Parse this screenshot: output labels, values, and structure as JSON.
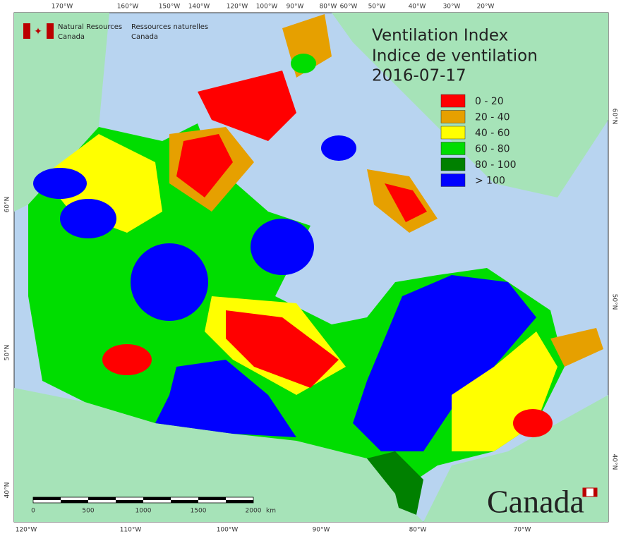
{
  "header": {
    "org_en": [
      "Natural Resources",
      "Canada"
    ],
    "org_fr": [
      "Ressources naturelles",
      "Canada"
    ]
  },
  "title": [
    "Ventilation Index",
    "Indice de ventilation"
  ],
  "date": "2016-07-17",
  "legend": [
    {
      "label": "0 - 20",
      "color": "#ff0000"
    },
    {
      "label": "20 - 40",
      "color": "#e6a000"
    },
    {
      "label": "40 - 60",
      "color": "#ffff00"
    },
    {
      "label": "60 - 80",
      "color": "#00dd00"
    },
    {
      "label": "80 - 100",
      "color": "#008000"
    },
    {
      "label": "> 100",
      "color": "#0000ff"
    }
  ],
  "top_labels": [
    "170°W",
    "160°W",
    "150°W",
    "140°W",
    "120°W",
    "100°W",
    "90°W",
    "80°W",
    "60°W",
    "50°W",
    "40°W",
    "30°W",
    "20°W"
  ],
  "bottom_labels": [
    "120°W",
    "110°W",
    "100°W",
    "90°W",
    "80°W",
    "70°W"
  ],
  "left_labels": [
    "60°N",
    "50°N",
    "40°N"
  ],
  "right_labels": [
    "60°N",
    "50°N",
    "40°N"
  ],
  "scale": {
    "ticks": [
      0,
      500,
      1000,
      1500,
      2000
    ],
    "unit": "km"
  },
  "wordmark": "Canada"
}
